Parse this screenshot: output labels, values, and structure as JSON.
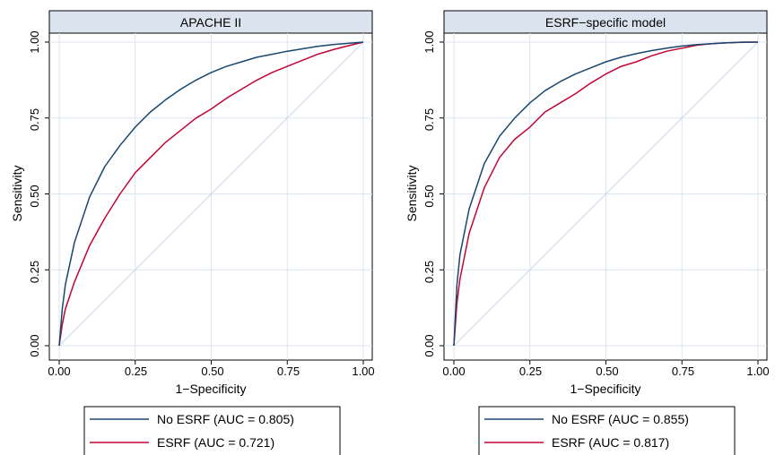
{
  "chart_data": [
    {
      "type": "line",
      "title": "APACHE II",
      "xlabel": "1−Specificity",
      "ylabel": "Sensitivity",
      "xlim": [
        0,
        1
      ],
      "ylim": [
        0,
        1
      ],
      "xticks": [
        "0.00",
        "0.25",
        "0.50",
        "0.75",
        "1.00"
      ],
      "yticks": [
        "0.00",
        "0.25",
        "0.50",
        "0.75",
        "1.00"
      ],
      "grid": true,
      "legend_position": "bottom",
      "reference_line": true,
      "series": [
        {
          "name": "No ESRF (AUC = 0.805)",
          "color": "#1a476f",
          "x": [
            0,
            0.01,
            0.02,
            0.05,
            0.1,
            0.15,
            0.2,
            0.25,
            0.3,
            0.35,
            0.4,
            0.45,
            0.5,
            0.55,
            0.6,
            0.65,
            0.7,
            0.75,
            0.8,
            0.85,
            0.9,
            0.95,
            1.0
          ],
          "y": [
            0,
            0.12,
            0.2,
            0.34,
            0.49,
            0.59,
            0.66,
            0.72,
            0.77,
            0.81,
            0.845,
            0.875,
            0.9,
            0.92,
            0.935,
            0.95,
            0.96,
            0.97,
            0.978,
            0.986,
            0.992,
            0.996,
            1.0
          ]
        },
        {
          "name": "ESRF (AUC = 0.721)",
          "color": "#c10534",
          "x": [
            0,
            0.01,
            0.02,
            0.05,
            0.1,
            0.15,
            0.2,
            0.25,
            0.3,
            0.35,
            0.4,
            0.45,
            0.5,
            0.55,
            0.6,
            0.65,
            0.7,
            0.75,
            0.8,
            0.85,
            0.9,
            0.95,
            1.0
          ],
          "y": [
            0,
            0.07,
            0.12,
            0.21,
            0.33,
            0.42,
            0.5,
            0.57,
            0.62,
            0.67,
            0.71,
            0.75,
            0.78,
            0.815,
            0.845,
            0.875,
            0.9,
            0.92,
            0.94,
            0.96,
            0.975,
            0.988,
            1.0
          ]
        }
      ]
    },
    {
      "type": "line",
      "title": "ESRF−specific model",
      "xlabel": "1−Specificity",
      "ylabel": "Sensitivity",
      "xlim": [
        0,
        1
      ],
      "ylim": [
        0,
        1
      ],
      "xticks": [
        "0.00",
        "0.25",
        "0.50",
        "0.75",
        "1.00"
      ],
      "yticks": [
        "0.00",
        "0.25",
        "0.50",
        "0.75",
        "1.00"
      ],
      "grid": true,
      "legend_position": "bottom",
      "reference_line": true,
      "series": [
        {
          "name": "No ESRF (AUC = 0.855)",
          "color": "#1a476f",
          "x": [
            0,
            0.01,
            0.02,
            0.05,
            0.1,
            0.15,
            0.2,
            0.25,
            0.3,
            0.35,
            0.4,
            0.45,
            0.5,
            0.55,
            0.6,
            0.65,
            0.7,
            0.75,
            0.8,
            0.85,
            0.9,
            0.95,
            1.0
          ],
          "y": [
            0,
            0.2,
            0.3,
            0.45,
            0.6,
            0.69,
            0.75,
            0.8,
            0.84,
            0.87,
            0.895,
            0.915,
            0.935,
            0.95,
            0.962,
            0.972,
            0.98,
            0.987,
            0.992,
            0.995,
            0.998,
            0.999,
            1.0
          ]
        },
        {
          "name": "ESRF (AUC = 0.817)",
          "color": "#c10534",
          "x": [
            0,
            0.01,
            0.02,
            0.05,
            0.1,
            0.15,
            0.2,
            0.25,
            0.3,
            0.35,
            0.4,
            0.45,
            0.5,
            0.55,
            0.6,
            0.65,
            0.7,
            0.75,
            0.8,
            0.85,
            0.9,
            0.95,
            1.0
          ],
          "y": [
            0,
            0.14,
            0.22,
            0.37,
            0.52,
            0.62,
            0.68,
            0.72,
            0.77,
            0.8,
            0.83,
            0.865,
            0.895,
            0.92,
            0.935,
            0.955,
            0.97,
            0.98,
            0.99,
            0.995,
            0.998,
            1.0,
            1.0
          ]
        }
      ]
    }
  ]
}
